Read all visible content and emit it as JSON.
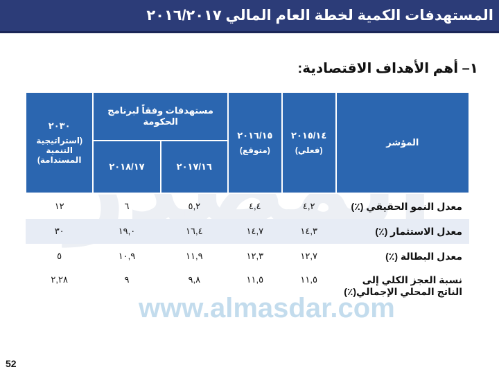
{
  "title": "المستهدفات الكمية لخطة العام المالي ٢٠١٦/٢٠١٧",
  "section_heading": "١– أهم الأهداف الاقتصادية:",
  "table": {
    "headers": {
      "indicator": "المؤشر",
      "fy1415_year": "٢٠١٥/١٤",
      "fy1415_note": "(فعلي)",
      "fy1516_year": "٢٠١٦/١٥",
      "fy1516_note": "(متوقع)",
      "program_group": "مستهدفات وفقاً لبرنامج الحكومة",
      "fy1617": "٢٠١٧/١٦",
      "fy1718": "٢٠١٨/١٧",
      "strategy_year": "٢٠٣٠",
      "strategy_note": "(استراتيجية التنمية المستدامة)"
    },
    "rows": [
      {
        "indicator": "معدل النمو الحقيقي (٪)",
        "fy1415": "٤,٢",
        "fy1516": "٤,٤",
        "fy1617": "٥,٢",
        "fy1718": "٦",
        "y2030": "١٢"
      },
      {
        "indicator": "معدل الاستثمار (٪)",
        "fy1415": "١٤,٣",
        "fy1516": "١٤,٧",
        "fy1617": "١٦,٤",
        "fy1718": "١٩,٠",
        "y2030": "٣٠"
      },
      {
        "indicator": "معدل البطالة (٪)",
        "fy1415": "١٢,٧",
        "fy1516": "١٢,٣",
        "fy1617": "١١,٩",
        "fy1718": "١٠,٩",
        "y2030": "٥"
      },
      {
        "indicator": "نسبة العجز الكلي إلى الناتج المحلي الإجمالي(٪)",
        "fy1415": "١١,٥",
        "fy1516": "١١,٥",
        "fy1617": "٩,٨",
        "fy1718": "٩",
        "y2030": "٢,٢٨"
      }
    ]
  },
  "watermark": {
    "logo_text": "المصدر",
    "url": "www.almasdar.com"
  },
  "page_number": "52",
  "colors": {
    "title_bar": "#2c3c78",
    "table_header": "#2b66b0",
    "row_shade": "#e7ecf5"
  }
}
